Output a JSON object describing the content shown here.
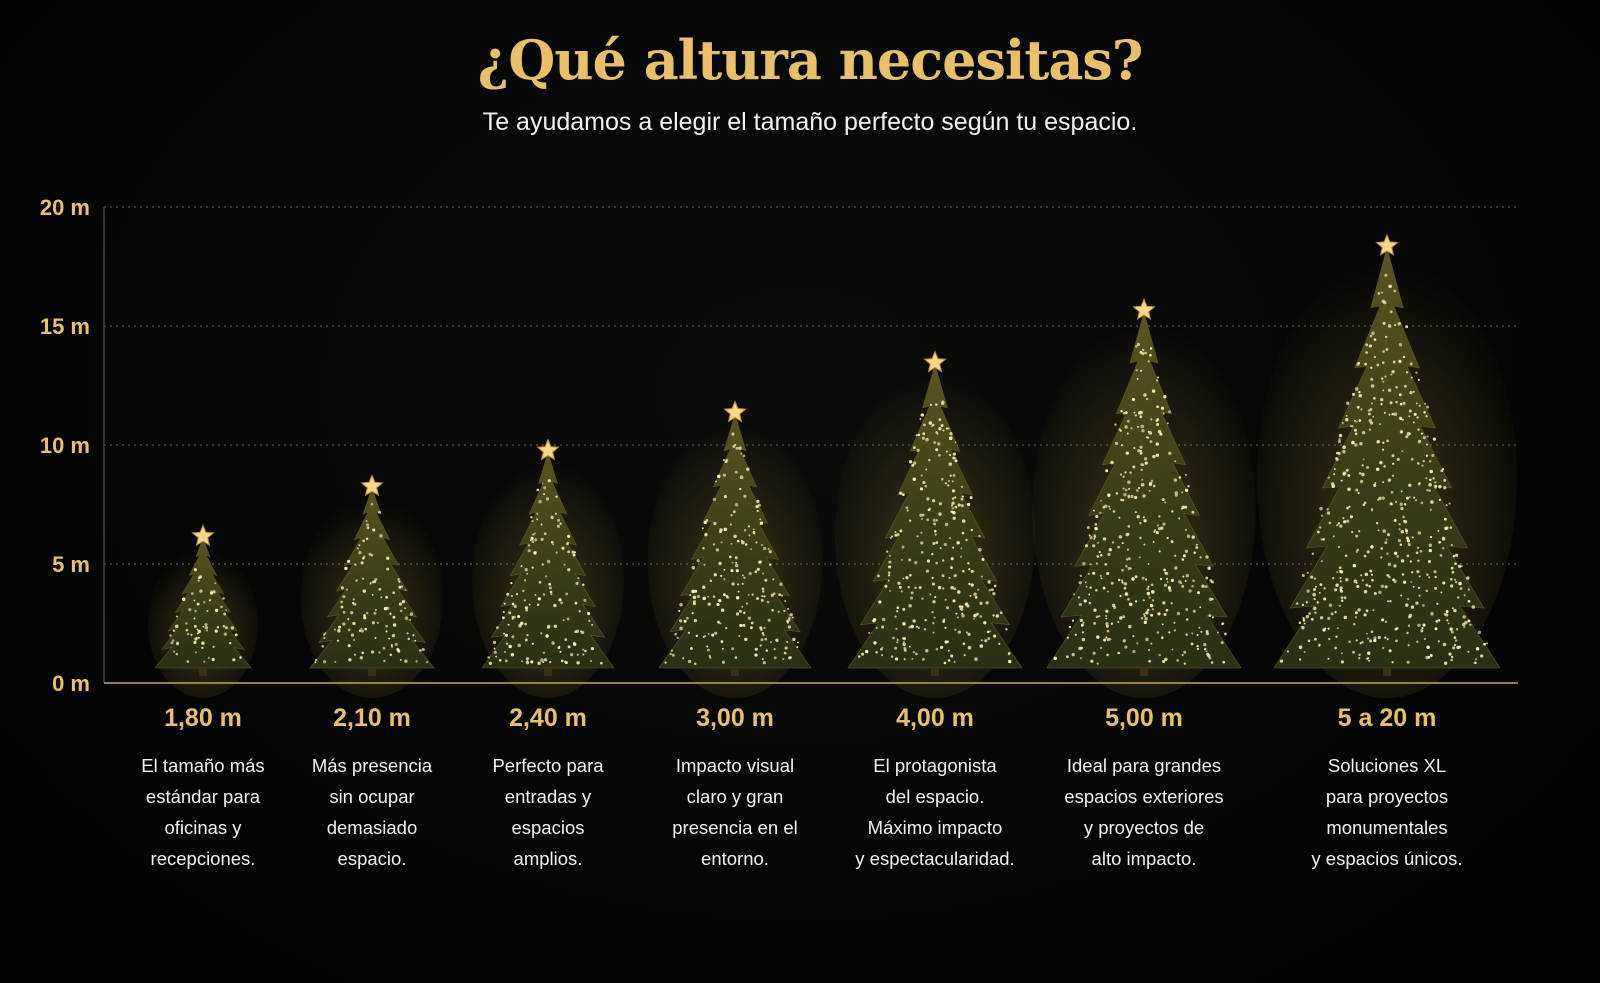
{
  "header": {
    "title": "¿Qué altura necesitas?",
    "subtitle": "Te ayudamos a elegir el tamaño perfecto según tu espacio."
  },
  "colors": {
    "accent": "#e8c06c",
    "background": "#050505",
    "tree_dark": "#1f2410",
    "tree_mid": "#4a4a1c",
    "light": "#fff1b8"
  },
  "chart_data": {
    "type": "bar",
    "yunit": "m",
    "ylim": [
      0,
      20
    ],
    "yticks": [
      0,
      5,
      10,
      15,
      20
    ],
    "ytick_labels": [
      "0 m",
      "5 m",
      "10 m",
      "15 m",
      "20 m"
    ],
    "grid": true,
    "categories": [
      "1,80 m",
      "2,10 m",
      "2,40 m",
      "3,00 m",
      "4,00 m",
      "5,00 m",
      "5 a 20 m"
    ],
    "values": [
      6.5,
      8.6,
      10.1,
      11.7,
      13.8,
      16.0,
      18.7
    ],
    "descriptions": [
      "El tamaño más\nestándar para\noficinas y\nrecepciones.",
      "Más presencia\nsin ocupar\ndemasiado\nespacio.",
      "Perfecto para\nentradas y\nespacios\namplios.",
      "Impacto visual\nclaro y gran\npresencia en el\nentorno.",
      "El protagonista\ndel espacio.\nMáximo impacto\ny espectacularidad.",
      "Ideal para grandes\nespacios exteriores\ny proyectos de\nalto impacto.",
      "Soluciones XL\npara proyectos\nmonumentales\ny espacios únicos."
    ]
  }
}
